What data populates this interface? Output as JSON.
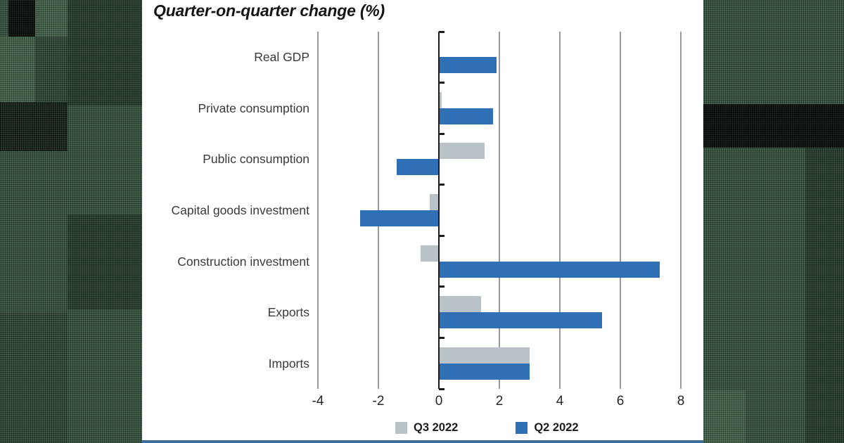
{
  "title": "Quarter-on-quarter change (%)",
  "colors": {
    "q3_gray": "#b9c2c6",
    "q2_blue": "#2f6fb6",
    "gridline": "#9b9b9b",
    "axis": "#1c1c1c",
    "bottom_accent": "#3c6d9c",
    "background_green": "#4d6e56"
  },
  "chart_data": {
    "type": "bar",
    "orientation": "horizontal",
    "title": "Quarter-on-quarter change (%)",
    "categories": [
      "Real GDP",
      "Private consumption",
      "Public consumption",
      "Capital goods investment",
      "Construction investment",
      "Exports",
      "Imports"
    ],
    "series": [
      {
        "name": "Q3 2022",
        "color": "#b9c2c6",
        "values": [
          0.0,
          0.1,
          1.5,
          -0.3,
          -0.6,
          1.4,
          3.0
        ]
      },
      {
        "name": "Q2 2022",
        "color": "#2f6fb6",
        "values": [
          1.9,
          1.8,
          -1.4,
          -2.6,
          7.3,
          5.4,
          3.0
        ]
      }
    ],
    "x_ticks": [
      -4,
      -2,
      0,
      2,
      4,
      6,
      8
    ],
    "xlim": [
      -4.5,
      8.6
    ],
    "grid": "vertical",
    "legend_position": "bottom"
  }
}
